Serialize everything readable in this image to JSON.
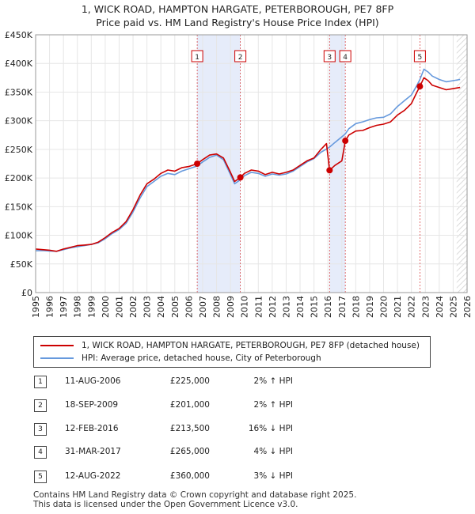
{
  "title": {
    "line1": "1, WICK ROAD, HAMPTON HARGATE, PETERBOROUGH, PE7 8FP",
    "line2": "Price paid vs. HM Land Registry's House Price Index (HPI)"
  },
  "colors": {
    "property": "#cc0000",
    "hpi": "#6699dd",
    "shade": "#e6ecfa",
    "marker_border": "#cc0000",
    "grid": "#e6e6e6"
  },
  "chart_data": {
    "type": "line",
    "title": "Price paid vs. HM Land Registry's House Price Index (HPI)",
    "xlabel": "",
    "ylabel": "",
    "xlim": [
      1995,
      2026
    ],
    "ylim": [
      0,
      450000
    ],
    "y_ticks": [
      0,
      50000,
      100000,
      150000,
      200000,
      250000,
      300000,
      350000,
      400000,
      450000
    ],
    "y_tick_labels": [
      "£0",
      "£50K",
      "£100K",
      "£150K",
      "£200K",
      "£250K",
      "£300K",
      "£350K",
      "£400K",
      "£450K"
    ],
    "x_ticks": [
      1995,
      1996,
      1997,
      1998,
      1999,
      2000,
      2001,
      2002,
      2003,
      2004,
      2005,
      2006,
      2007,
      2008,
      2009,
      2010,
      2011,
      2012,
      2013,
      2014,
      2015,
      2016,
      2017,
      2018,
      2019,
      2020,
      2021,
      2022,
      2023,
      2024,
      2025,
      2026
    ],
    "x_tick_labels": [
      "1995",
      "1996",
      "1997",
      "1998",
      "1999",
      "2000",
      "2001",
      "2002",
      "2003",
      "2004",
      "2005",
      "2006",
      "2007",
      "2008",
      "2009",
      "2010",
      "2011",
      "2012",
      "2013",
      "2014",
      "2015",
      "2016",
      "2017",
      "2018",
      "2019",
      "2020",
      "2021",
      "2022",
      "2023",
      "2024",
      "2025",
      "2026"
    ],
    "grid": true,
    "shaded_ranges": [
      [
        2006.61,
        2009.71
      ],
      [
        2016.12,
        2017.25
      ]
    ],
    "future_hatch_from": 2025.25,
    "series": [
      {
        "name": "1, WICK ROAD, HAMPTON HARGATE, PETERBOROUGH, PE7 8FP (detached house)",
        "color": "#cc0000",
        "x": [
          1995.0,
          1995.5,
          1996.0,
          1996.5,
          1997.0,
          1997.5,
          1998.0,
          1998.5,
          1999.0,
          1999.5,
          2000.0,
          2000.5,
          2001.0,
          2001.5,
          2002.0,
          2002.5,
          2003.0,
          2003.5,
          2004.0,
          2004.5,
          2005.0,
          2005.5,
          2006.0,
          2006.61,
          2007.0,
          2007.5,
          2008.0,
          2008.5,
          2009.0,
          2009.3,
          2009.71,
          2010.0,
          2010.5,
          2011.0,
          2011.5,
          2012.0,
          2012.5,
          2013.0,
          2013.5,
          2014.0,
          2014.5,
          2015.0,
          2015.5,
          2015.9,
          2016.12,
          2016.5,
          2017.0,
          2017.25,
          2017.5,
          2018.0,
          2018.5,
          2019.0,
          2019.5,
          2020.0,
          2020.5,
          2021.0,
          2021.5,
          2022.0,
          2022.4,
          2022.61,
          2022.9,
          2023.2,
          2023.5,
          2024.0,
          2024.5,
          2025.0,
          2025.5
        ],
        "values": [
          76000,
          75000,
          74000,
          72000,
          76000,
          79000,
          82000,
          83000,
          84000,
          88000,
          96000,
          105000,
          112000,
          124000,
          145000,
          170000,
          190000,
          198000,
          208000,
          214000,
          212000,
          218000,
          220000,
          225000,
          232000,
          240000,
          242000,
          235000,
          210000,
          194000,
          201000,
          208000,
          214000,
          212000,
          206000,
          210000,
          207000,
          210000,
          214000,
          222000,
          230000,
          235000,
          250000,
          260000,
          213500,
          222000,
          230000,
          265000,
          275000,
          282000,
          283000,
          288000,
          292000,
          294000,
          298000,
          310000,
          318000,
          330000,
          350000,
          360000,
          375000,
          370000,
          362000,
          358000,
          354000,
          356000,
          358000
        ]
      },
      {
        "name": "HPI: Average price, detached house, City of Peterborough",
        "color": "#6699dd",
        "x": [
          1995.0,
          1995.5,
          1996.0,
          1996.5,
          1997.0,
          1997.5,
          1998.0,
          1998.5,
          1999.0,
          1999.5,
          2000.0,
          2000.5,
          2001.0,
          2001.5,
          2002.0,
          2002.5,
          2003.0,
          2003.5,
          2004.0,
          2004.5,
          2005.0,
          2005.5,
          2006.0,
          2006.61,
          2007.0,
          2007.5,
          2008.0,
          2008.5,
          2009.0,
          2009.3,
          2009.71,
          2010.0,
          2010.5,
          2011.0,
          2011.5,
          2012.0,
          2012.5,
          2013.0,
          2013.5,
          2014.0,
          2014.5,
          2015.0,
          2015.5,
          2016.0,
          2016.12,
          2016.5,
          2017.0,
          2017.25,
          2017.5,
          2018.0,
          2018.5,
          2019.0,
          2019.5,
          2020.0,
          2020.5,
          2021.0,
          2021.5,
          2022.0,
          2022.4,
          2022.61,
          2022.9,
          2023.2,
          2023.5,
          2024.0,
          2024.5,
          2025.0,
          2025.5
        ],
        "values": [
          73000,
          73500,
          72500,
          72000,
          75000,
          78000,
          80000,
          82000,
          84000,
          87000,
          94000,
          103000,
          110000,
          121000,
          141000,
          165000,
          185000,
          194000,
          203000,
          208000,
          206000,
          212000,
          216000,
          221000,
          228000,
          236000,
          240000,
          232000,
          206000,
          190000,
          197000,
          204000,
          210000,
          208000,
          203000,
          207000,
          205000,
          207000,
          212000,
          220000,
          228000,
          234000,
          245000,
          252000,
          254000,
          262000,
          272000,
          277000,
          286000,
          295000,
          298000,
          302000,
          305000,
          306000,
          312000,
          325000,
          335000,
          345000,
          362000,
          372000,
          390000,
          385000,
          378000,
          372000,
          368000,
          370000,
          372000
        ]
      }
    ],
    "sale_markers": [
      {
        "label": "1",
        "x": 2006.61,
        "value": 225000
      },
      {
        "label": "2",
        "x": 2009.71,
        "value": 201000
      },
      {
        "label": "3",
        "x": 2016.12,
        "value": 213500
      },
      {
        "label": "4",
        "x": 2017.25,
        "value": 265000
      },
      {
        "label": "5",
        "x": 2022.61,
        "value": 360000
      }
    ]
  },
  "legend": {
    "property_label": "1, WICK ROAD, HAMPTON HARGATE, PETERBOROUGH, PE7 8FP (detached house)",
    "hpi_label": "HPI: Average price, detached house, City of Peterborough"
  },
  "sales": [
    {
      "num": "1",
      "date": "11-AUG-2006",
      "price": "£225,000",
      "hpi": "2% ↑ HPI"
    },
    {
      "num": "2",
      "date": "18-SEP-2009",
      "price": "£201,000",
      "hpi": "2% ↑ HPI"
    },
    {
      "num": "3",
      "date": "12-FEB-2016",
      "price": "£213,500",
      "hpi": "16% ↓ HPI"
    },
    {
      "num": "4",
      "date": "31-MAR-2017",
      "price": "£265,000",
      "hpi": "4% ↓ HPI"
    },
    {
      "num": "5",
      "date": "12-AUG-2022",
      "price": "£360,000",
      "hpi": "3% ↓ HPI"
    }
  ],
  "footer": {
    "line1": "Contains HM Land Registry data © Crown copyright and database right 2025.",
    "line2": "This data is licensed under the Open Government Licence v3.0."
  }
}
